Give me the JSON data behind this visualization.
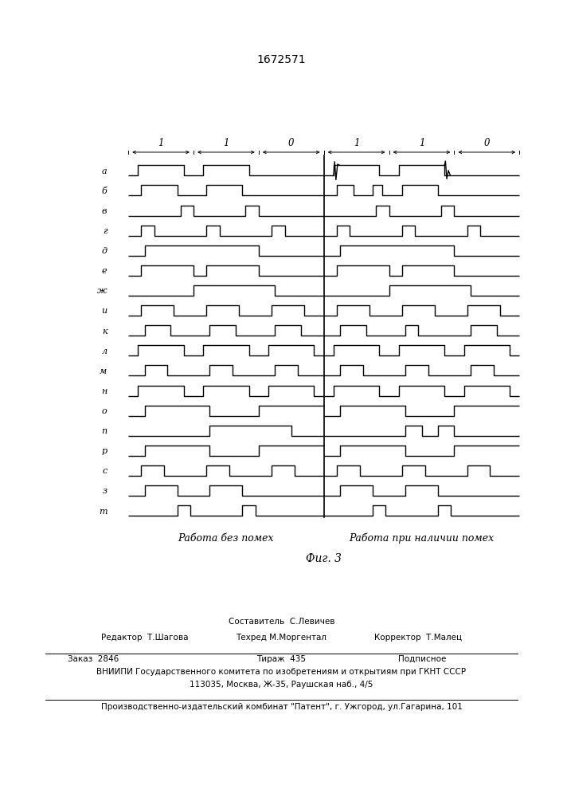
{
  "title": "1672571",
  "fig_label": "Фиг. 3",
  "label_left": "Работа без помех",
  "label_right": "Работа при наличии помех",
  "background_color": "#ffffff",
  "line_color": "#000000",
  "row_labels": [
    "а",
    "б",
    "в",
    "г",
    "д",
    "е",
    "ж",
    "и",
    "к",
    "л",
    "м",
    "н",
    "о",
    "п",
    "р",
    "с",
    "з",
    "т"
  ],
  "bit_labels_left": [
    "1",
    "1",
    "0"
  ],
  "bit_labels_right": [
    "1",
    "1",
    "0"
  ],
  "footer_line1_left": "Редактор  Т.Шагова",
  "footer_line1_center_top": "Составитель  С.Левичев",
  "footer_line1_center_bot": "Техред М.Моргентал",
  "footer_line1_right": "Корректор  Т.Малец",
  "footer_line2_1": "Заказ  2846",
  "footer_line2_2": "Тираж  435",
  "footer_line2_3": "Подписное",
  "footer_line3": "ВНИИПИ Государственного комитета по изобретениям и открытиям при ГКНТ СССР",
  "footer_line4": "113035, Москва, Ж-35, Раушская наб., 4/5",
  "footer_line5": "Производственно-издательский комбинат \"Патент\", г. Ужгород, ул.Гагарина, 101"
}
